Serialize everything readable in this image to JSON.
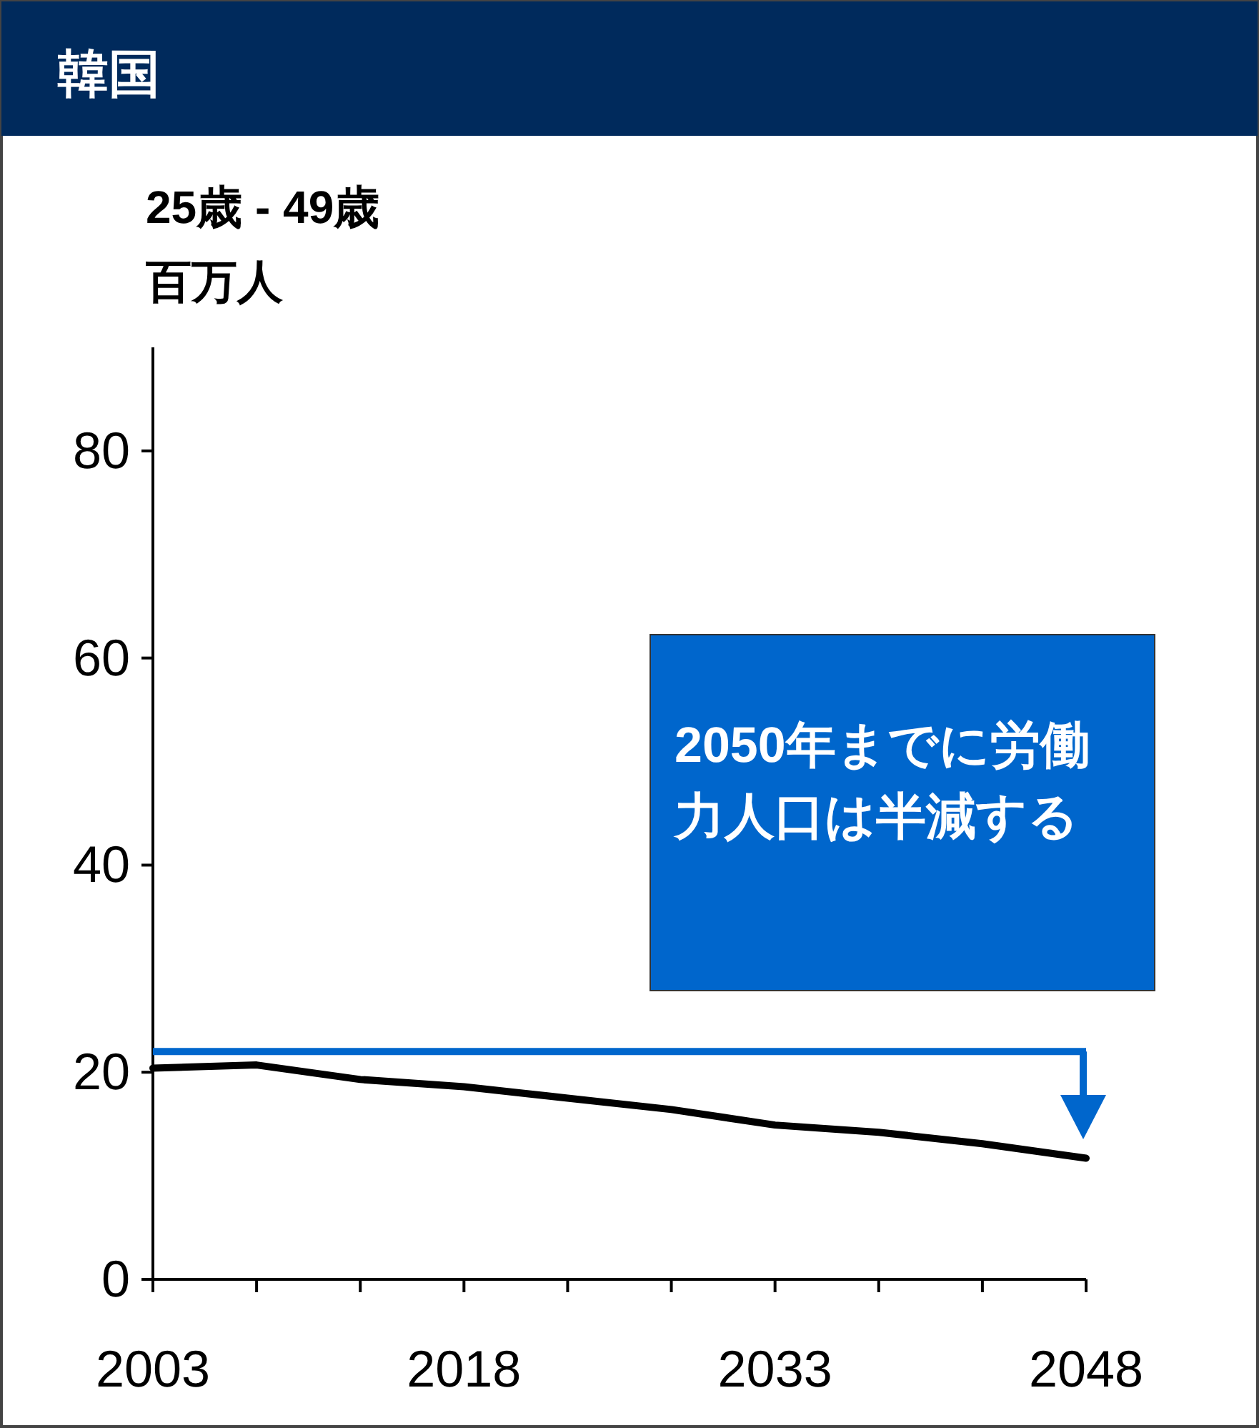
{
  "chart_data": {
    "type": "line",
    "title": "韓国",
    "subtitle": "25歳 - 49歳",
    "ylabel": "百万人",
    "x": [
      2003,
      2008,
      2013,
      2018,
      2023,
      2028,
      2033,
      2038,
      2043,
      2048
    ],
    "series": [
      {
        "color": "#000000",
        "values": [
          20.4,
          20.7,
          19.3,
          18.6,
          17.5,
          16.4,
          14.9,
          14.2,
          13.1,
          11.7
        ]
      }
    ],
    "xlim": [
      2003,
      2048
    ],
    "xticks": [
      2003,
      {
        "value": 2008,
        "label": null
      },
      {
        "value": 2013,
        "label": null
      },
      2018,
      {
        "value": 2023,
        "label": null
      },
      {
        "value": 2028,
        "label": null
      },
      2033,
      {
        "value": 2038,
        "label": null
      },
      {
        "value": 2043,
        "label": null
      },
      2048
    ],
    "ylim": [
      0,
      90
    ],
    "yticks": [
      0,
      20,
      40,
      60,
      80
    ],
    "annotations": [
      "2050年までに労働力人口は半減する"
    ],
    "ref_lines": [
      {
        "axis": "y",
        "value": 22,
        "color": "#0066cc"
      }
    ],
    "grid": false,
    "marker": "none",
    "line_style": "solid"
  }
}
